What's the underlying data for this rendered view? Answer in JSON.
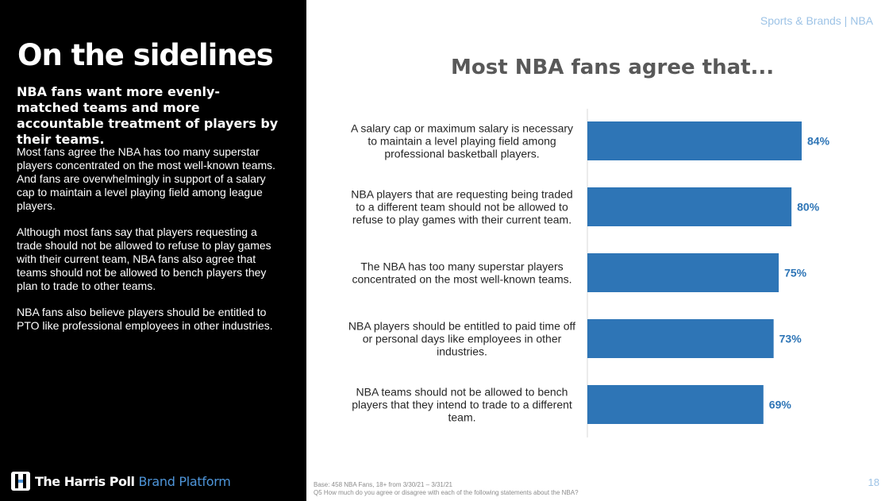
{
  "header": {
    "section": "Sports & Brands | NBA"
  },
  "left_panel": {
    "title": "On the sidelines",
    "subtitle": "NBA fans want more evenly-matched teams and more accountable treatment of players by their teams.",
    "paragraphs": [
      "Most fans agree the NBA has too many superstar players concentrated on the most well-known teams. And fans are overwhelmingly in support of a salary cap to maintain a level playing field among league players.",
      "Although most fans say that players requesting a trade should not be allowed to refuse to play games with their current team, NBA fans also agree that teams should not be allowed to bench players they plan to trade to other teams.",
      "NBA fans also believe players should be entitled to PTO like professional employees in other industries."
    ]
  },
  "logo": {
    "brand_bold": "The Harris Poll",
    "brand_light": "Brand Platform"
  },
  "chart_title": "Most NBA fans agree that...",
  "chart_data": {
    "type": "bar",
    "orientation": "horizontal",
    "title": "Most NBA fans agree that...",
    "categories": [
      [
        "A salary cap or maximum salary is necessary",
        "to maintain a level playing field among",
        "professional basketball players."
      ],
      [
        "NBA players that are requesting being traded",
        "to a different team should not be allowed to",
        "refuse to play games with their current team."
      ],
      [
        "The NBA has too many superstar players",
        "concentrated on the most well-known teams."
      ],
      [
        "NBA players should be entitled to paid time off",
        "or personal days like employees in other",
        "industries."
      ],
      [
        "NBA teams should not be allowed to bench",
        "players that they intend to trade to a different",
        "team."
      ]
    ],
    "values": [
      84,
      80,
      75,
      73,
      69
    ],
    "value_labels": [
      "84%",
      "80%",
      "75%",
      "73%",
      "69%"
    ],
    "xlim": [
      0,
      100
    ],
    "bar_color": "#2e75b6",
    "label_color": "#2e75b6",
    "grid": false
  },
  "footer": {
    "base": "Base: 458 NBA Fans, 18+ from 3/30/21 – 3/31/21",
    "question": "Q5 How much do you agree or disagree with each of the following statements about the NBA?"
  },
  "page_number": "18",
  "colors": {
    "accent": "#2e75b6",
    "light_blue": "#9dc3e6",
    "panel": "#000000"
  }
}
